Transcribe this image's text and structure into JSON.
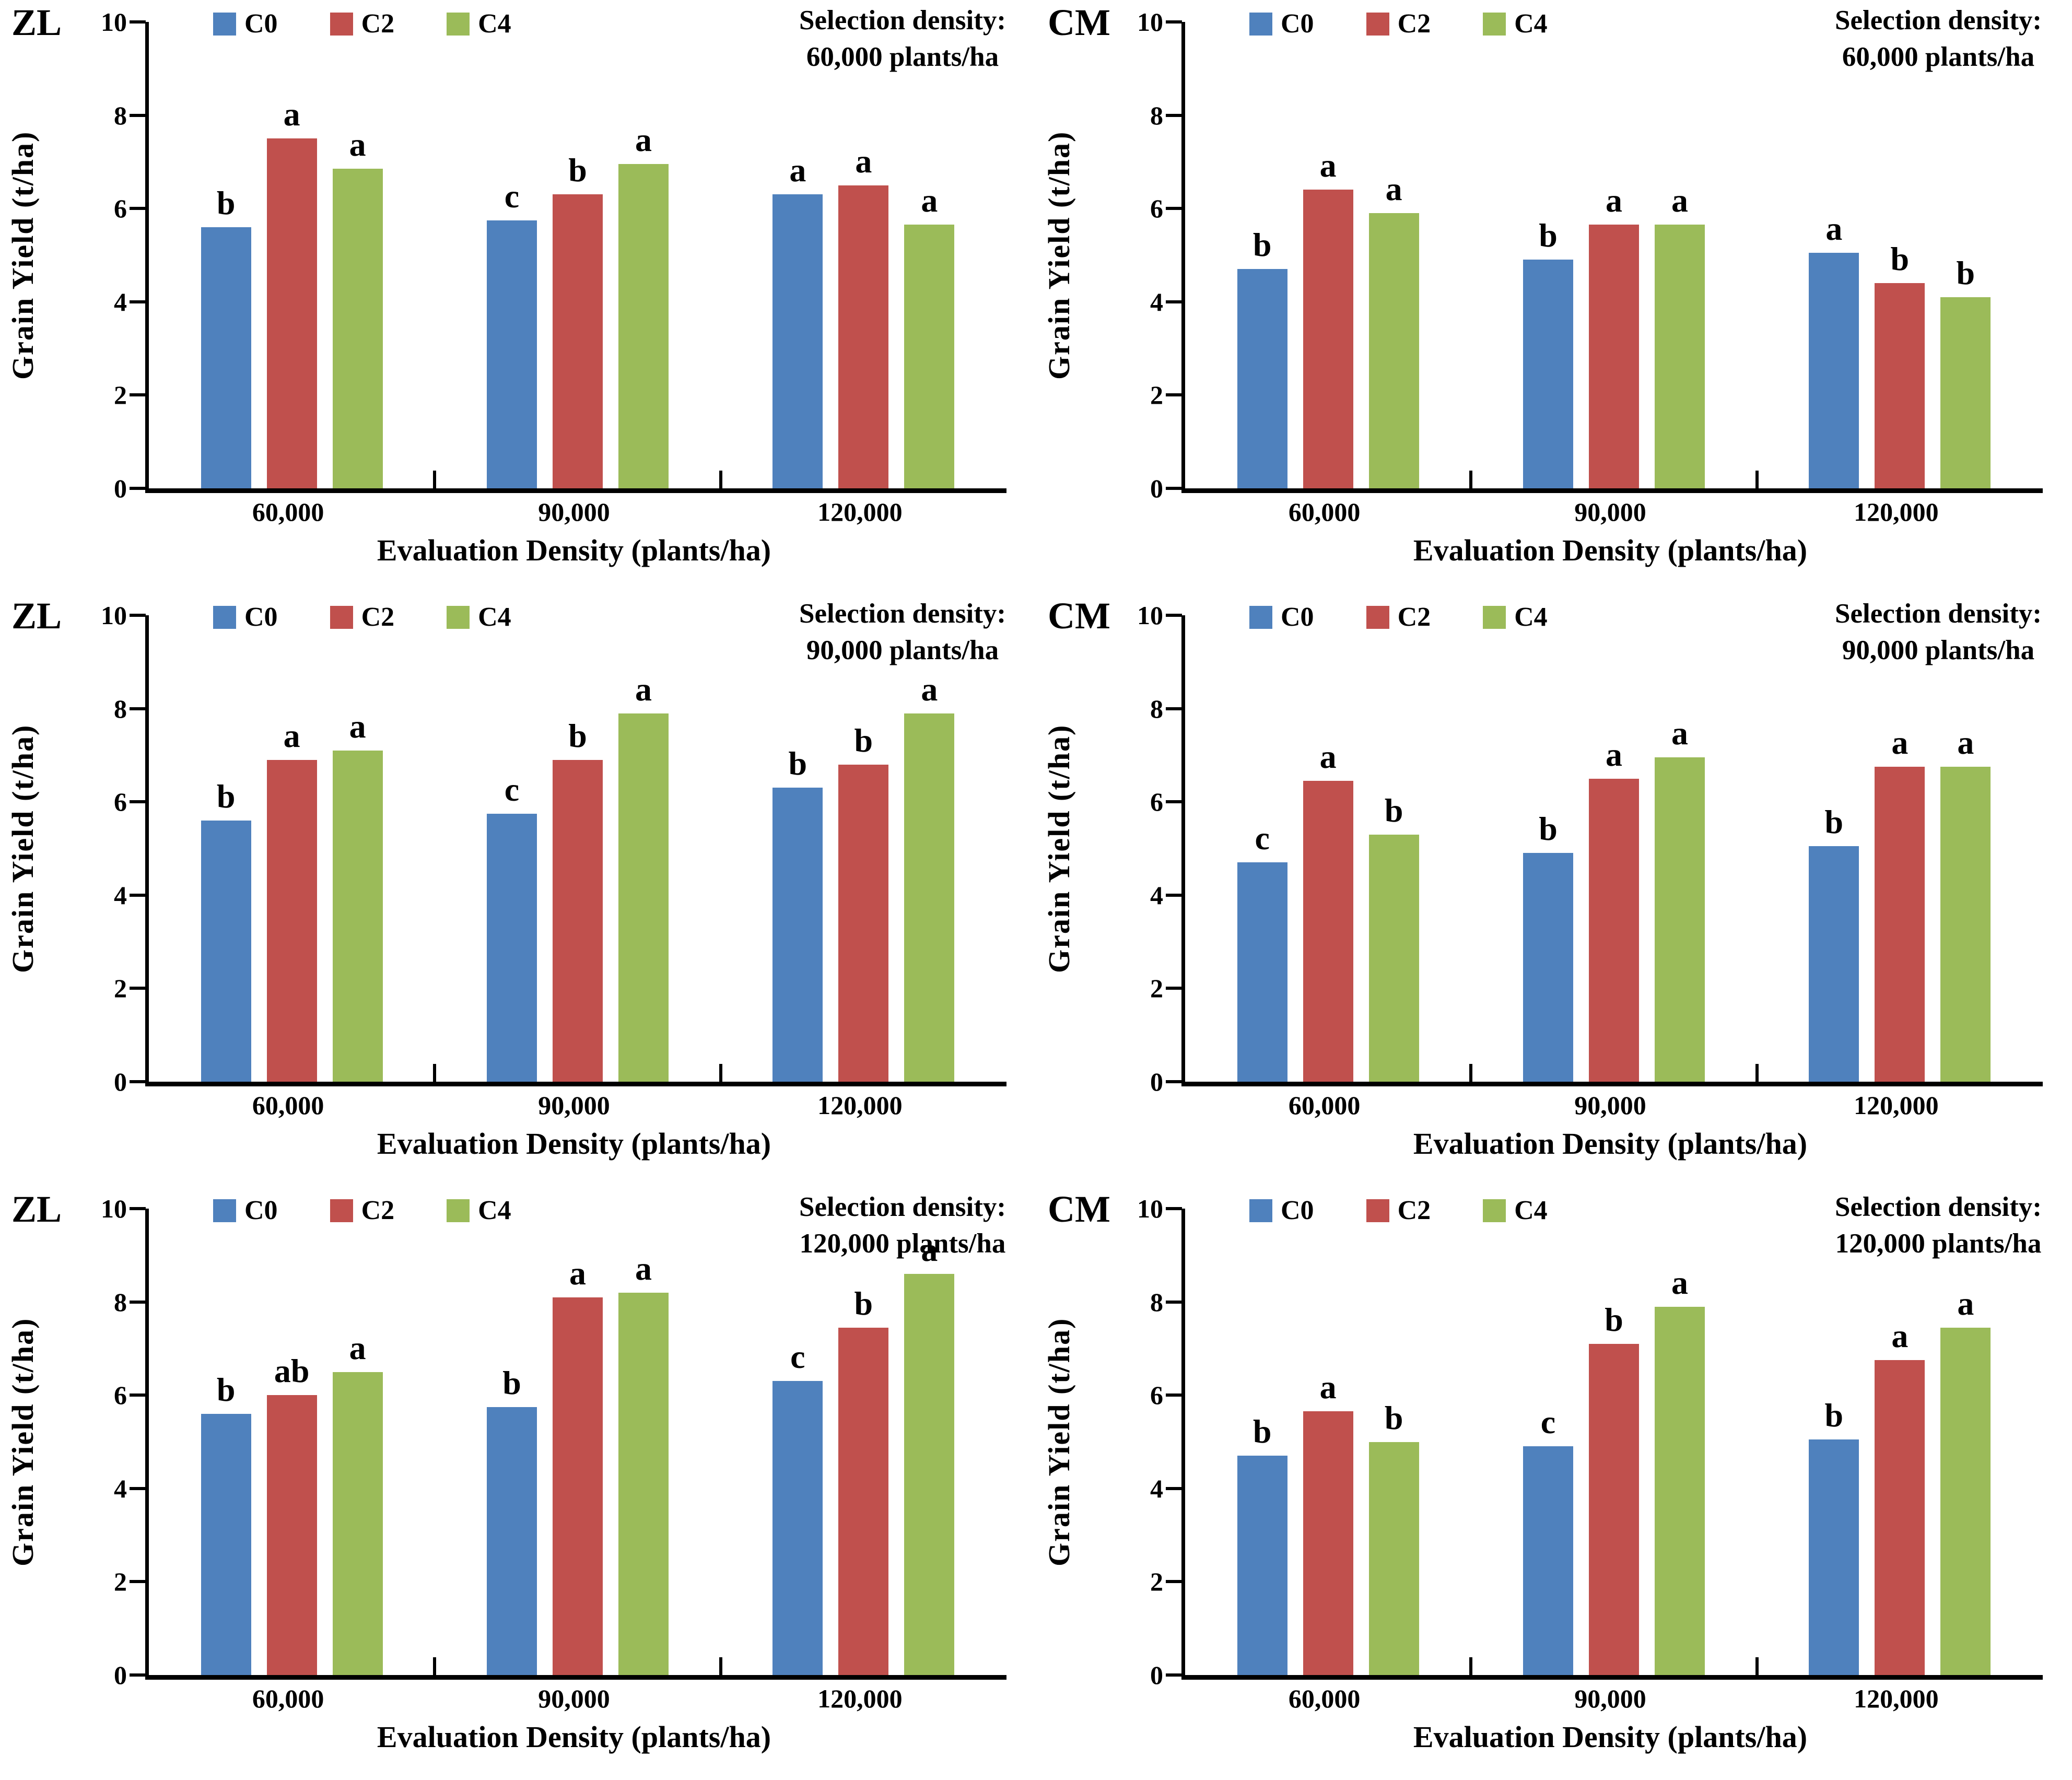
{
  "figure": {
    "panel_labels": [
      "ZL",
      "CM"
    ],
    "legend": [
      "C0",
      "C2",
      "C4"
    ],
    "colors": {
      "C0": "#4F81BD",
      "C2": "#C0504D",
      "C4": "#9BBB59",
      "axis": "#000000"
    }
  },
  "chart_data": [
    {
      "type": "bar",
      "panel": "ZL",
      "annotation": [
        "Selection density:",
        "60,000 plants/ha"
      ],
      "xlabel": "Evaluation Density (plants/ha)",
      "ylabel": "Grain Yield (t/ha)",
      "ylim": [
        0,
        10
      ],
      "yticks": [
        0,
        2,
        4,
        6,
        8,
        10
      ],
      "grid": false,
      "legend_position": "top",
      "categories": [
        "60,000",
        "90,000",
        "120,000"
      ],
      "series": [
        {
          "name": "C0",
          "color": "#4F81BD",
          "values": [
            5.6,
            5.75,
            6.3
          ],
          "letters": [
            "b",
            "c",
            "a"
          ]
        },
        {
          "name": "C2",
          "color": "#C0504D",
          "values": [
            7.5,
            6.3,
            6.5
          ],
          "letters": [
            "a",
            "b",
            "a"
          ]
        },
        {
          "name": "C4",
          "color": "#9BBB59",
          "values": [
            6.85,
            6.95,
            5.65
          ],
          "letters": [
            "a",
            "a",
            "a"
          ]
        }
      ]
    },
    {
      "type": "bar",
      "panel": "CM",
      "annotation": [
        "Selection density:",
        "60,000 plants/ha"
      ],
      "xlabel": "Evaluation Density (plants/ha)",
      "ylabel": "Grain Yield (t/ha)",
      "ylim": [
        0,
        10
      ],
      "yticks": [
        0,
        2,
        4,
        6,
        8,
        10
      ],
      "grid": false,
      "legend_position": "top",
      "categories": [
        "60,000",
        "90,000",
        "120,000"
      ],
      "series": [
        {
          "name": "C0",
          "color": "#4F81BD",
          "values": [
            4.7,
            4.9,
            5.05
          ],
          "letters": [
            "b",
            "b",
            "a"
          ]
        },
        {
          "name": "C2",
          "color": "#C0504D",
          "values": [
            6.4,
            5.65,
            4.4
          ],
          "letters": [
            "a",
            "a",
            "b"
          ]
        },
        {
          "name": "C4",
          "color": "#9BBB59",
          "values": [
            5.9,
            5.65,
            4.1
          ],
          "letters": [
            "a",
            "a",
            "b"
          ]
        }
      ]
    },
    {
      "type": "bar",
      "panel": "ZL",
      "annotation": [
        "Selection density:",
        "90,000 plants/ha"
      ],
      "xlabel": "Evaluation Density (plants/ha)",
      "ylabel": "Grain Yield (t/ha)",
      "ylim": [
        0,
        10
      ],
      "yticks": [
        0,
        2,
        4,
        6,
        8,
        10
      ],
      "grid": false,
      "legend_position": "top",
      "categories": [
        "60,000",
        "90,000",
        "120,000"
      ],
      "series": [
        {
          "name": "C0",
          "color": "#4F81BD",
          "values": [
            5.6,
            5.75,
            6.3
          ],
          "letters": [
            "b",
            "c",
            "b"
          ]
        },
        {
          "name": "C2",
          "color": "#C0504D",
          "values": [
            6.9,
            6.9,
            6.8
          ],
          "letters": [
            "a",
            "b",
            "b"
          ]
        },
        {
          "name": "C4",
          "color": "#9BBB59",
          "values": [
            7.1,
            7.9,
            7.9
          ],
          "letters": [
            "a",
            "a",
            "a"
          ]
        }
      ]
    },
    {
      "type": "bar",
      "panel": "CM",
      "annotation": [
        "Selection density:",
        "90,000 plants/ha"
      ],
      "xlabel": "Evaluation Density (plants/ha)",
      "ylabel": "Grain Yield (t/ha)",
      "ylim": [
        0,
        10
      ],
      "yticks": [
        0,
        2,
        4,
        6,
        8,
        10
      ],
      "grid": false,
      "legend_position": "top",
      "categories": [
        "60,000",
        "90,000",
        "120,000"
      ],
      "series": [
        {
          "name": "C0",
          "color": "#4F81BD",
          "values": [
            4.7,
            4.9,
            5.05
          ],
          "letters": [
            "c",
            "b",
            "b"
          ]
        },
        {
          "name": "C2",
          "color": "#C0504D",
          "values": [
            6.45,
            6.5,
            6.75
          ],
          "letters": [
            "a",
            "a",
            "a"
          ]
        },
        {
          "name": "C4",
          "color": "#9BBB59",
          "values": [
            5.3,
            6.95,
            6.75
          ],
          "letters": [
            "b",
            "a",
            "a"
          ]
        }
      ]
    },
    {
      "type": "bar",
      "panel": "ZL",
      "annotation": [
        "Selection density:",
        "120,000 plants/ha"
      ],
      "xlabel": "Evaluation Density (plants/ha)",
      "ylabel": "Grain Yield (t/ha)",
      "ylim": [
        0,
        10
      ],
      "yticks": [
        0,
        2,
        4,
        6,
        8,
        10
      ],
      "grid": false,
      "legend_position": "top",
      "categories": [
        "60,000",
        "90,000",
        "120,000"
      ],
      "series": [
        {
          "name": "C0",
          "color": "#4F81BD",
          "values": [
            5.6,
            5.75,
            6.3
          ],
          "letters": [
            "b",
            "b",
            "c"
          ]
        },
        {
          "name": "C2",
          "color": "#C0504D",
          "values": [
            6.0,
            8.1,
            7.45
          ],
          "letters": [
            "ab",
            "a",
            "b"
          ]
        },
        {
          "name": "C4",
          "color": "#9BBB59",
          "values": [
            6.5,
            8.2,
            8.6
          ],
          "letters": [
            "a",
            "a",
            "a"
          ]
        }
      ]
    },
    {
      "type": "bar",
      "panel": "CM",
      "annotation": [
        "Selection density:",
        "120,000 plants/ha"
      ],
      "xlabel": "Evaluation Density (plants/ha)",
      "ylabel": "Grain Yield (t/ha)",
      "ylim": [
        0,
        10
      ],
      "yticks": [
        0,
        2,
        4,
        6,
        8,
        10
      ],
      "grid": false,
      "legend_position": "top",
      "categories": [
        "60,000",
        "90,000",
        "120,000"
      ],
      "series": [
        {
          "name": "C0",
          "color": "#4F81BD",
          "values": [
            4.7,
            4.9,
            5.05
          ],
          "letters": [
            "b",
            "c",
            "b"
          ]
        },
        {
          "name": "C2",
          "color": "#C0504D",
          "values": [
            5.65,
            7.1,
            6.75
          ],
          "letters": [
            "a",
            "b",
            "a"
          ]
        },
        {
          "name": "C4",
          "color": "#9BBB59",
          "values": [
            5.0,
            7.9,
            7.45
          ],
          "letters": [
            "b",
            "a",
            "a"
          ]
        }
      ]
    }
  ]
}
